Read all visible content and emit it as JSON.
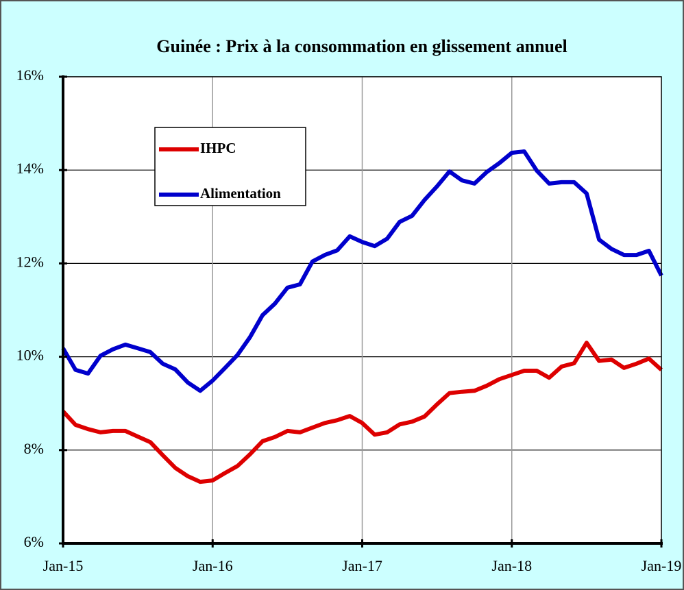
{
  "chart_data": {
    "type": "line",
    "title": "Guinée : Prix à la consommation en glissement annuel",
    "categories": [
      "Jan-15",
      null,
      null,
      null,
      null,
      null,
      null,
      null,
      null,
      null,
      null,
      null,
      "Jan-16",
      null,
      null,
      null,
      null,
      null,
      null,
      null,
      null,
      null,
      null,
      null,
      "Jan-17",
      null,
      null,
      null,
      null,
      null,
      null,
      null,
      null,
      null,
      null,
      null,
      "Jan-18",
      null,
      null,
      null,
      null,
      null,
      null,
      null,
      null,
      null,
      null,
      null,
      "Jan-19"
    ],
    "series": [
      {
        "name": "IHPC",
        "color": "#dd0000",
        "values": [
          8.83,
          8.54,
          8.45,
          8.38,
          8.41,
          8.41,
          8.29,
          8.17,
          7.89,
          7.62,
          7.44,
          7.32,
          7.35,
          7.51,
          7.66,
          7.91,
          8.19,
          8.28,
          8.41,
          8.38,
          8.48,
          8.58,
          8.64,
          8.73,
          8.58,
          8.33,
          8.38,
          8.55,
          8.61,
          8.72,
          8.98,
          9.22,
          9.25,
          9.27,
          9.38,
          9.52,
          9.61,
          9.7,
          9.7,
          9.55,
          9.79,
          9.86,
          10.3,
          9.91,
          9.94,
          9.76,
          9.85,
          9.96,
          9.72
        ]
      },
      {
        "name": "Alimentation",
        "color": "#0000cc",
        "values": [
          10.18,
          9.72,
          9.64,
          10.02,
          10.16,
          10.26,
          10.18,
          10.1,
          9.85,
          9.73,
          9.45,
          9.27,
          9.49,
          9.76,
          10.04,
          10.42,
          10.89,
          11.14,
          11.48,
          11.55,
          12.04,
          12.18,
          12.28,
          12.58,
          12.46,
          12.37,
          12.53,
          12.89,
          13.02,
          13.36,
          13.65,
          13.97,
          13.78,
          13.71,
          13.96,
          14.15,
          14.37,
          14.4,
          13.99,
          13.71,
          13.74,
          13.74,
          13.5,
          12.51,
          12.31,
          12.18,
          12.18,
          12.27,
          11.74
        ]
      }
    ],
    "ylim": [
      6,
      16
    ],
    "yticks": [
      {
        "value": 6,
        "label": "6%"
      },
      {
        "value": 8,
        "label": "8%"
      },
      {
        "value": 10,
        "label": "10%"
      },
      {
        "value": 12,
        "label": "12%"
      },
      {
        "value": 14,
        "label": "14%"
      },
      {
        "value": 16,
        "label": "16%"
      }
    ],
    "grid": true
  }
}
